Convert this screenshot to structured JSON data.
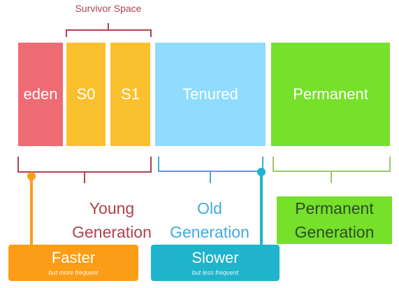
{
  "survivor_label": "Survivor Space",
  "blocks": {
    "eden": "eden",
    "s0": "S0",
    "s1": "S1",
    "tenured": "Tenured",
    "permanent": "Permanent"
  },
  "generations": {
    "young": [
      "Young",
      "Generation"
    ],
    "old": [
      "Old",
      "Generation"
    ],
    "permanent": [
      "Permanent",
      "Generation"
    ]
  },
  "boxes": {
    "faster": {
      "title": "Faster",
      "subtitle": "but more frequent"
    },
    "slower": {
      "title": "Slower",
      "subtitle": "but less frequent"
    }
  },
  "colors": {
    "eden": "#ef6b73",
    "survivor": "#fbc02d",
    "tenured": "#8fdcff",
    "permanent": "#76e02b",
    "young_text": "#b0414f",
    "old_text": "#42a9e0",
    "permanent_text": "#2e4d24",
    "faster_box": "#fb9d16",
    "slower_box": "#1fb3cc"
  }
}
